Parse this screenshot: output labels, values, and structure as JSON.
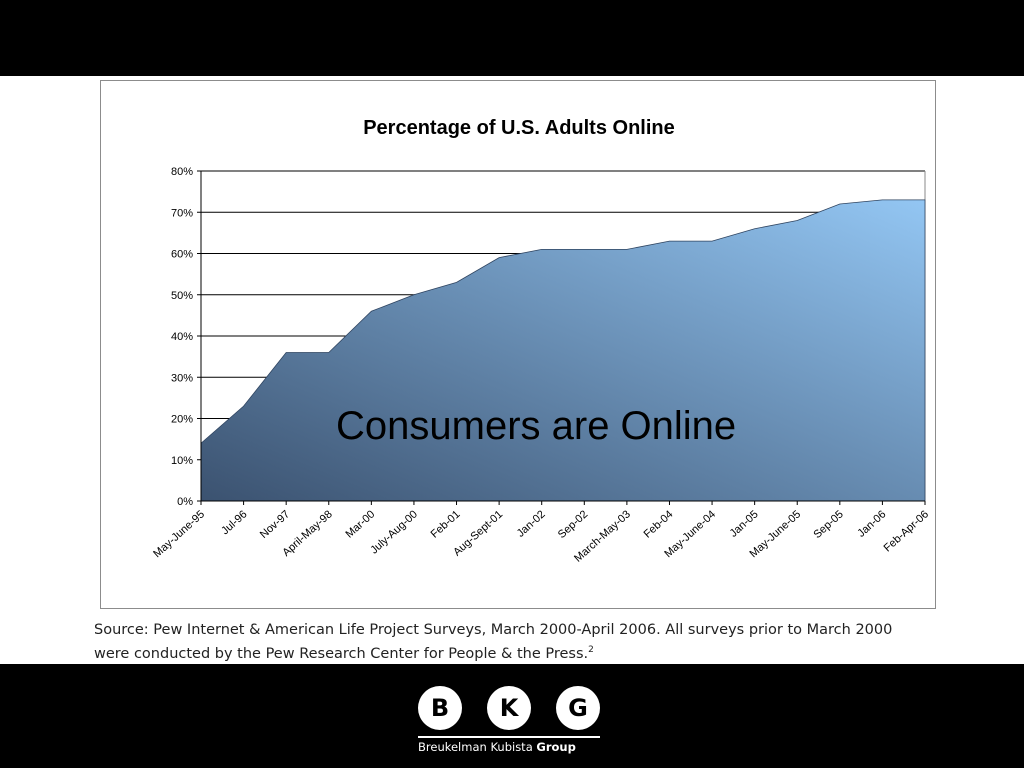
{
  "slide": {
    "overlay_text": "Consumers are Online",
    "source_line1": "Source: Pew Internet & American Life Project Surveys, March 2000-April 2006. All surveys prior to March 2000",
    "source_line2": "were conducted by the Pew Research Center for People & the Press.",
    "source_footnote": "2"
  },
  "logo": {
    "letters": [
      "B",
      "K",
      "G"
    ],
    "name_regular": "Breukelman Kubista",
    "name_bold": "Group"
  },
  "colors": {
    "area_top": "#93c6f3",
    "area_bottom": "#3b5270",
    "gridline": "#000000",
    "background_bars": "#000000"
  },
  "chart_data": {
    "type": "area",
    "title": "Percentage of U.S. Adults Online",
    "xlabel": "",
    "ylabel": "",
    "categories": [
      "May-June-95",
      "Jul-96",
      "Nov-97",
      "April-May-98",
      "Mar-00",
      "July-Aug-00",
      "Feb-01",
      "Aug-Sept-01",
      "Jan-02",
      "Sep-02",
      "March-May-03",
      "Feb-04",
      "May-June-04",
      "Jan-05",
      "May-June-05",
      "Sep-05",
      "Jan-06",
      "Feb-Apr-06"
    ],
    "values": [
      14,
      23,
      36,
      36,
      46,
      50,
      53,
      59,
      61,
      61,
      61,
      63,
      63,
      66,
      68,
      72,
      73,
      73
    ],
    "ylim": [
      0,
      80
    ],
    "yticks": [
      0,
      10,
      20,
      30,
      40,
      50,
      60,
      70,
      80
    ],
    "ytick_labels": [
      "0%",
      "10%",
      "20%",
      "30%",
      "40%",
      "50%",
      "60%",
      "70%",
      "80%"
    ],
    "grid": true,
    "legend": "none"
  }
}
